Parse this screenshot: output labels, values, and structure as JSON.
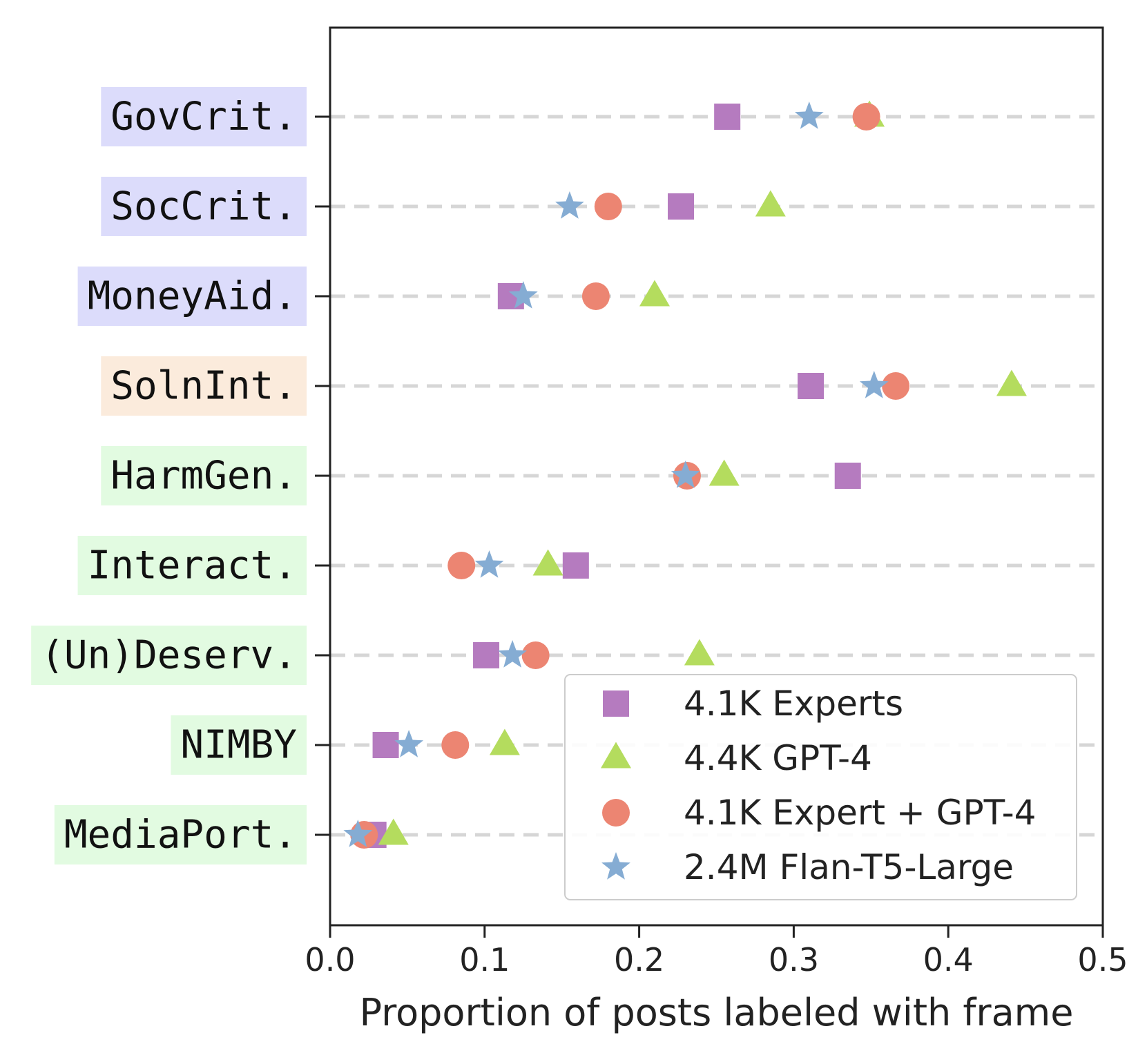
{
  "chart_data": {
    "type": "scatter",
    "orientation": "horizontal",
    "categories": [
      "GovCrit.",
      "SocCrit.",
      "MoneyAid.",
      "SolnInt.",
      "HarmGen.",
      "Interact.",
      "(Un)Deserv.",
      "NIMBY",
      "MediaPort."
    ],
    "category_colors": [
      "#dcdcfb",
      "#dcdcfb",
      "#dcdcfb",
      "#fbebdc",
      "#e2fbe1",
      "#e2fbe1",
      "#e2fbe1",
      "#e2fbe1",
      "#e2fbe1"
    ],
    "series": [
      {
        "name": "4.1K Experts",
        "marker": "square",
        "color": "#b57bbf",
        "values": [
          0.257,
          0.227,
          0.117,
          0.311,
          0.335,
          0.159,
          0.101,
          0.036,
          0.028
        ]
      },
      {
        "name": "4.4K GPT-4",
        "marker": "triangle",
        "color": "#b4dc5e",
        "values": [
          0.349,
          0.285,
          0.21,
          0.441,
          0.255,
          0.141,
          0.239,
          0.113,
          0.041
        ]
      },
      {
        "name": "4.1K Expert + GPT-4",
        "marker": "circle",
        "color": "#ec8572",
        "values": [
          0.347,
          0.18,
          0.172,
          0.366,
          0.231,
          0.085,
          0.133,
          0.081,
          0.022
        ]
      },
      {
        "name": "2.4M Flan-T5-Large",
        "marker": "star",
        "color": "#85acd3",
        "values": [
          0.31,
          0.155,
          0.125,
          0.352,
          0.23,
          0.103,
          0.118,
          0.051,
          0.018
        ]
      }
    ],
    "xlabel": "Proportion of posts labeled with frame",
    "xlim": [
      0.0,
      0.5
    ],
    "xticks": [
      "0.0",
      "0.1",
      "0.2",
      "0.3",
      "0.4",
      "0.5"
    ],
    "grid": "horizontal dashed",
    "legend_position": "bottom-right"
  }
}
